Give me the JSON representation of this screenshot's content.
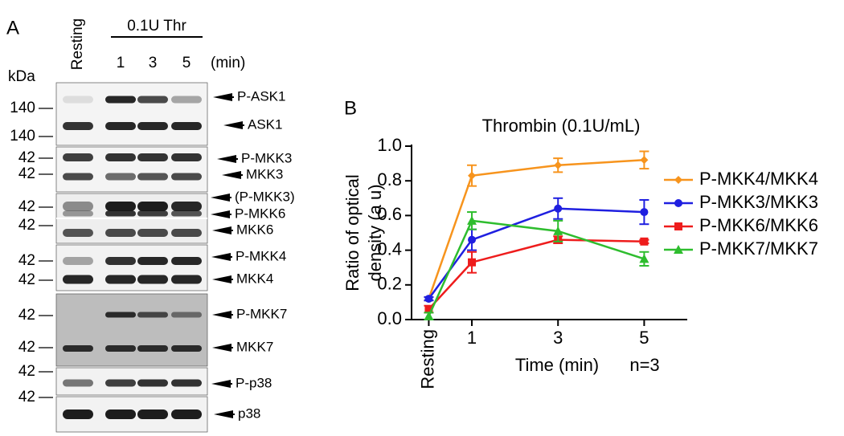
{
  "panel_a": {
    "label": "A",
    "control": "Resting",
    "treatment": "0.1U Thr",
    "times": [
      "1",
      "3",
      "5"
    ],
    "unit": "(min)",
    "kda": "kDa",
    "mw_markers": [
      "140",
      "140",
      "42",
      "42",
      "42",
      "42",
      "42",
      "42",
      "42",
      "42",
      "42",
      "42"
    ],
    "proteins": [
      "P-ASK1",
      "ASK1",
      "P-MKK3",
      "MKK3",
      "(P-MKK3)",
      "P-MKK6",
      "MKK6",
      "P-MKK4",
      "MKK4",
      "P-MKK7",
      "MKK7",
      "P-p38",
      "p38"
    ]
  },
  "chart_data": {
    "type": "line",
    "panel_label": "B",
    "title": "Thrombin (0.1U/mL)",
    "ylabel": [
      "Ratio of optical",
      "density (a u)"
    ],
    "xlabel": "Time (min)",
    "annotation": "n=3",
    "x": [
      0,
      1,
      3,
      5
    ],
    "xlim": [
      -0.4,
      6
    ],
    "xticks": [
      {
        "value": 0,
        "label": "Resting"
      },
      1,
      3,
      5
    ],
    "ylim": [
      0,
      1
    ],
    "yticks": [
      {
        "value": 0,
        "label": "0.0"
      },
      0.2,
      0.4,
      0.6,
      0.8,
      {
        "value": 1,
        "label": "1.0"
      }
    ],
    "series": [
      {
        "name": "P-MKK4/MKK4",
        "color": "#f7941d",
        "marker": "diamond",
        "values": [
          0.12,
          0.83,
          0.89,
          0.92
        ],
        "errors": [
          0.01,
          0.06,
          0.04,
          0.05
        ]
      },
      {
        "name": "P-MKK3/MKK3",
        "color": "#1f1fe0",
        "marker": "circle",
        "values": [
          0.12,
          0.46,
          0.64,
          0.62
        ],
        "errors": [
          0.01,
          0.06,
          0.06,
          0.07
        ]
      },
      {
        "name": "P-MKK6/MKK6",
        "color": "#ee1c1c",
        "marker": "square",
        "values": [
          0.06,
          0.33,
          0.46,
          0.45
        ],
        "errors": [
          0.02,
          0.06,
          0.02,
          0.01
        ]
      },
      {
        "name": "P-MKK7/MKK7",
        "color": "#2ebd2e",
        "marker": "triangle",
        "values": [
          0.02,
          0.57,
          0.51,
          0.35
        ],
        "errors": [
          0.02,
          0.05,
          0.06,
          0.04
        ]
      }
    ]
  }
}
